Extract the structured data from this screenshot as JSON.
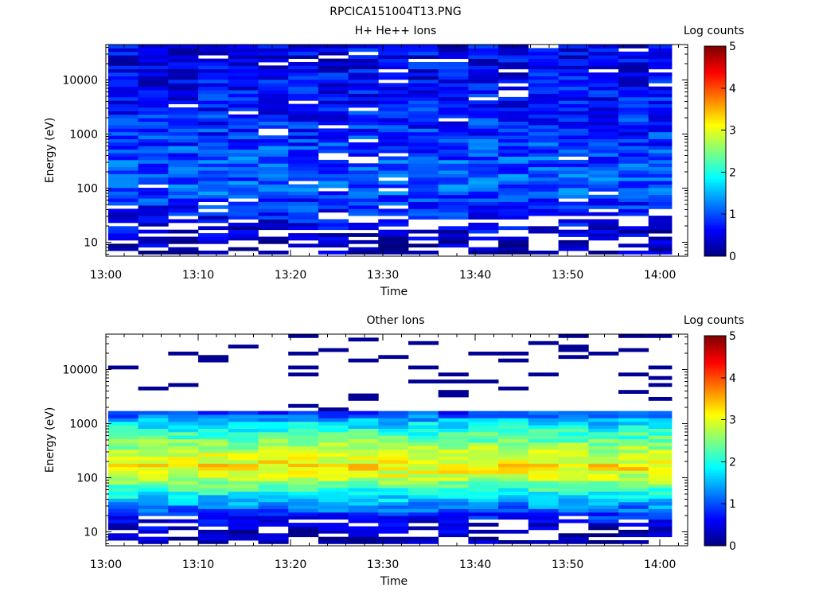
{
  "figure": {
    "title": "RPCICA151004T13.PNG"
  },
  "chart_data": [
    {
      "type": "heatmap",
      "title": "H+ He++ Ions",
      "xlabel": "Time",
      "ylabel": "Energy (eV)",
      "x_ticks": [
        "13:00",
        "13:10",
        "13:20",
        "13:30",
        "13:40",
        "13:50",
        "14:00"
      ],
      "xlim_minutes": [
        0,
        63
      ],
      "time_bins_minutes": [
        0,
        3.25,
        6.5,
        9.75,
        13,
        16.25,
        19.5,
        22.75,
        26,
        29.25,
        32.5,
        35.75,
        39,
        42.25,
        45.5,
        48.75,
        52,
        55.25,
        58.5,
        61.75
      ],
      "y_scale": "log",
      "ylim": [
        5.5,
        45000
      ],
      "y_ticks": [
        10,
        100,
        1000,
        10000
      ],
      "y_tick_labels": [
        "10",
        "100",
        "1000",
        "10000"
      ],
      "energy_bins_eV": [
        6,
        45000
      ],
      "energy_bin_count": 60,
      "colorbar": {
        "label": "Log counts",
        "range": [
          0,
          5
        ],
        "ticks": [
          "0",
          "1",
          "2",
          "3",
          "4",
          "5"
        ],
        "colormap": "jet"
      },
      "profile_log_counts": {
        "energy_eV": [
          6,
          10,
          14,
          20,
          30,
          50,
          80,
          130,
          300,
          1000,
          3000,
          10000,
          45000
        ],
        "level": [
          0.2,
          0.3,
          0.4,
          0.5,
          0.7,
          0.8,
          1.0,
          1.1,
          1.0,
          0.85,
          0.7,
          0.6,
          0.55
        ]
      },
      "sparse_below_eV": 30
    },
    {
      "type": "heatmap",
      "title": "Other Ions",
      "xlabel": "Time",
      "ylabel": "Energy (eV)",
      "x_ticks": [
        "13:00",
        "13:10",
        "13:20",
        "13:30",
        "13:40",
        "13:50",
        "14:00"
      ],
      "xlim_minutes": [
        0,
        63
      ],
      "time_bins_minutes": [
        0,
        3.25,
        6.5,
        9.75,
        13,
        16.25,
        19.5,
        22.75,
        26,
        29.25,
        32.5,
        35.75,
        39,
        42.25,
        45.5,
        48.75,
        52,
        55.25,
        58.5,
        61.75
      ],
      "y_scale": "log",
      "ylim": [
        5.5,
        45000
      ],
      "y_ticks": [
        10,
        100,
        1000,
        10000
      ],
      "y_tick_labels": [
        "10",
        "100",
        "1000",
        "10000"
      ],
      "energy_bins_eV": [
        6,
        45000
      ],
      "energy_bin_count": 60,
      "colorbar": {
        "label": "Log counts",
        "range": [
          0,
          5
        ],
        "ticks": [
          "0",
          "1",
          "2",
          "3",
          "4",
          "5"
        ],
        "colormap": "jet"
      },
      "profile_log_counts": {
        "energy_eV": [
          6,
          10,
          15,
          25,
          40,
          60,
          100,
          160,
          250,
          400,
          700,
          1100,
          1500,
          2000,
          45000
        ],
        "level": [
          0.2,
          0.3,
          0.5,
          1.1,
          1.6,
          2.1,
          2.8,
          3.2,
          2.9,
          2.6,
          2.1,
          1.6,
          1.0,
          0.3,
          0.2
        ]
      },
      "dense_range_eV": [
        20,
        1800
      ],
      "sparse_above_eV": 1800
    }
  ]
}
